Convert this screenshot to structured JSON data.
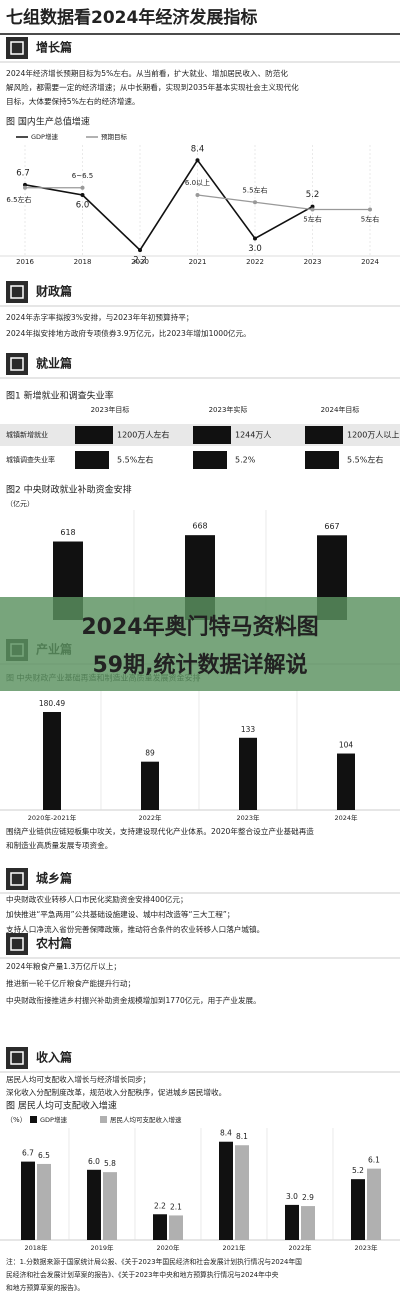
{
  "title": "七组数据看2024年经济发展指标",
  "banner": [
    "2024年奥门特马资料图",
    "59期,统计数据详解说"
  ],
  "sections": [
    {
      "heading": "增长篇",
      "lines": [
        "2024年经济增长预期目标为5%左右。从当前看，扩大就业、增加居民收入、防范化",
        "解风险，都需要一定的经济增速；从中长期看，实现到2035年基本实现社会主义现代化",
        "目标，大体要保持5%左右的经济增速。"
      ]
    },
    {
      "heading": "财政篇",
      "lines": [
        "2024年赤字率拟按3%安排，与2023年年初预算持平；",
        "2024年拟安排地方政府专项债券3.9万亿元，比2023年增加1000亿元。"
      ]
    },
    {
      "heading": "就业篇",
      "lines": []
    },
    {
      "heading": "产业篇",
      "lines": [
        "围绕产业链供应链短板集中攻关，支持建设现代化产业体系。2020年整合设立产业基础再造",
        "和制造业高质量发展专项资金。"
      ]
    },
    {
      "heading": "城乡篇",
      "lines": [
        "中央财政农业转移人口市民化奖励资金安排400亿元；",
        "加快推进“平急两用”公共基础设施建设、城中村改造等“三大工程”；",
        "支持人口净流入省份完善保障政策，推动符合条件的农业转移人口落户城镇。"
      ]
    },
    {
      "heading": "农村篇",
      "lines": [
        "2024年粮食产量1.3万亿斤以上；",
        "推进新一轮千亿斤粮食产能提升行动；",
        "中央财政衔接推进乡村振兴补助资金规模增加到1770亿元，用于产业发展。"
      ]
    },
    {
      "heading": "收入篇",
      "lines": [
        "居民人均可支配收入增长与经济增长同步；",
        "深化收入分配制度改革，规范收入分配秩序，促进城乡居民增收。"
      ]
    }
  ],
  "employment_table": {
    "title": "图1 新增就业和调查失业率",
    "columns": [
      "2023年目标",
      "2023年实际",
      "2024年目标"
    ],
    "rows": [
      {
        "label": "城镇新增就业",
        "cells": [
          "1200万人左右",
          "1244万人",
          "1200万人以上"
        ]
      },
      {
        "label": "城镇调查失业率",
        "cells": [
          "5.5%左右",
          "5.2%",
          "5.5%左右"
        ]
      }
    ]
  },
  "footer": [
    "注：1.分数据来源于国家统计局公报、《关于2023年国民经济和社会发展计划执行情况与2024年国",
    "民经济和社会发展计划草案的报告》、《关于2023年中央和地方预算执行情况与2024年中央",
    "和地方预算草案的报告》。"
  ],
  "chart_data": [
    {
      "type": "line",
      "title": "图 国内生产总值增速",
      "categories": [
        "2016",
        "2018",
        "2020",
        "2021",
        "2022",
        "2023",
        "2024"
      ],
      "series": [
        {
          "name": "GDP增速",
          "color": "#111111",
          "values": [
            6.7,
            6.0,
            2.2,
            8.4,
            3.0,
            5.2,
            null
          ],
          "value_labels": [
            "6.7",
            "6.0",
            "2.2",
            "8.4",
            "3.0",
            "5.2",
            null
          ]
        },
        {
          "name": "预期目标",
          "color": "#999999",
          "values": [
            6.5,
            6.5,
            null,
            6.0,
            5.5,
            5,
            5
          ],
          "value_labels": [
            "6.5左右",
            "6~6.5",
            null,
            "6.0以上",
            "5.5左右",
            "5左右",
            "5左右"
          ]
        }
      ]
    },
    {
      "type": "bar",
      "title": "图2 中央财政就业补助资金安排",
      "unit": "（亿元）",
      "categories": [
        null,
        null,
        null
      ],
      "values": [
        618,
        668,
        667
      ],
      "color": "#111111"
    },
    {
      "type": "bar",
      "title": "图 中央财政产业基础再造和制造业高质量发展资金安排",
      "categories": [
        "2020年-2021年",
        "2022年",
        "2023年",
        "2024年"
      ],
      "values": [
        180.49,
        89,
        133,
        104
      ],
      "color": "#111111"
    },
    {
      "type": "grouped_bar",
      "title": "图 居民人均可支配收入增速",
      "unit": "（%）",
      "categories": [
        "2018年",
        "2019年",
        "2020年",
        "2021年",
        "2022年",
        "2023年"
      ],
      "series": [
        {
          "name": "GDP增速",
          "color": "#111111",
          "values": [
            6.7,
            6.0,
            2.2,
            8.4,
            3.0,
            5.2
          ],
          "value_labels": [
            "6.7",
            "6.0",
            "2.2",
            "8.4",
            "3.0",
            "5.2"
          ]
        },
        {
          "name": "居民人均可支配收入增速",
          "color": "#b0b0b0",
          "values": [
            6.5,
            5.8,
            2.1,
            8.1,
            2.9,
            6.1
          ]
        }
      ]
    }
  ]
}
